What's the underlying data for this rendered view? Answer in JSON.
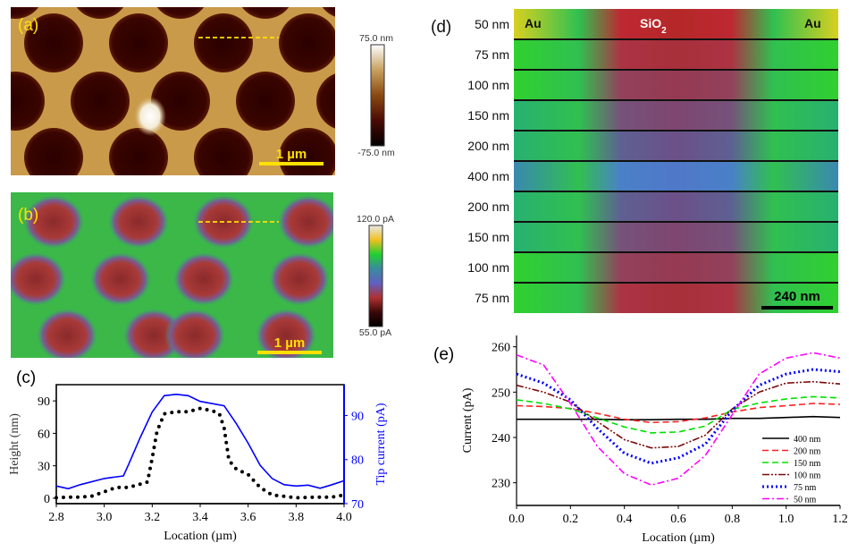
{
  "panels": {
    "a": {
      "label": "(a)",
      "scalebar": "1 µm",
      "colorbar": {
        "max": "75.0 nm",
        "min": "-75.0 nm",
        "colors": [
          "#ffffff",
          "#c8a060",
          "#8a4a12",
          "#4a0a05",
          "#000000"
        ]
      }
    },
    "b": {
      "label": "(b)",
      "scalebar": "1 µm",
      "colorbar": {
        "max": "120.0 pA",
        "min": "55.0 pA",
        "colors": [
          "#e8e8e8",
          "#f0c020",
          "#20d030",
          "#3a8aa0",
          "#6060c0",
          "#b03030",
          "#3a0808",
          "#000000"
        ]
      }
    },
    "d": {
      "label": "(d)",
      "left_label": "Au",
      "center_label": "SiO",
      "center_label_sub": "2",
      "right_label": "Au",
      "scalebar": "240 nm",
      "rows": [
        "50 nm",
        "75 nm",
        "100 nm",
        "150 nm",
        "200 nm",
        "400 nm",
        "200 nm",
        "150 nm",
        "100 nm",
        "75 nm"
      ]
    }
  },
  "chart_data": [
    {
      "id": "c",
      "panel_label": "(c)",
      "type": "line",
      "xlabel": "Location (µm)",
      "ylabel": "Height (nm)",
      "y2label": "Tip current (pA)",
      "xlim": [
        2.8,
        4.0
      ],
      "ylim": [
        -5,
        105
      ],
      "y2lim": [
        70,
        97
      ],
      "xticks": [
        "2.8",
        "3.0",
        "3.2",
        "3.4",
        "3.6",
        "3.8",
        "4.0"
      ],
      "yticks": [
        "0",
        "30",
        "60",
        "90"
      ],
      "y2ticks": [
        "70",
        "80",
        "90"
      ],
      "series": [
        {
          "axis": "left",
          "color": "#000000",
          "style": "dotted",
          "x": [
            2.8,
            2.85,
            2.9,
            2.95,
            3.0,
            3.05,
            3.1,
            3.15,
            3.18,
            3.2,
            3.22,
            3.25,
            3.3,
            3.35,
            3.4,
            3.45,
            3.48,
            3.5,
            3.52,
            3.55,
            3.6,
            3.65,
            3.7,
            3.8,
            3.9,
            3.95,
            4.0
          ],
          "y": [
            0.5,
            1,
            1,
            2,
            6,
            10,
            10,
            13,
            15,
            37,
            62,
            78,
            80,
            80,
            83,
            81,
            78,
            65,
            35,
            27,
            22,
            10,
            3,
            0.5,
            1,
            1,
            3
          ]
        },
        {
          "axis": "right",
          "color": "#0000ff",
          "style": "solid",
          "x": [
            2.8,
            2.85,
            2.9,
            3.0,
            3.08,
            3.1,
            3.15,
            3.2,
            3.25,
            3.3,
            3.35,
            3.4,
            3.5,
            3.55,
            3.6,
            3.65,
            3.7,
            3.75,
            3.8,
            3.85,
            3.9,
            3.95,
            4.0
          ],
          "y": [
            74,
            73.4,
            74.3,
            75.7,
            76.3,
            78.7,
            85,
            90.8,
            94.5,
            94.8,
            94.5,
            93.2,
            92.2,
            88.2,
            83.7,
            78.7,
            75.7,
            74.3,
            74,
            74.2,
            73.5,
            74.3,
            75.2
          ]
        }
      ]
    },
    {
      "id": "e",
      "panel_label": "(e)",
      "type": "line",
      "xlabel": "Location (µm)",
      "ylabel": "Current (pA)",
      "xlim": [
        0,
        1.2
      ],
      "ylim": [
        225,
        262.5
      ],
      "xticks": [
        "0.0",
        "0.2",
        "0.4",
        "0.6",
        "0.8",
        "1.0",
        "1.2"
      ],
      "yticks": [
        "230",
        "240",
        "250",
        "260"
      ],
      "legend": "lower-right",
      "x": [
        0,
        0.1,
        0.2,
        0.3,
        0.4,
        0.5,
        0.6,
        0.7,
        0.8,
        0.9,
        1.0,
        1.1,
        1.2
      ],
      "series": [
        {
          "name": "400 nm",
          "color": "#000000",
          "style": "solid",
          "values": [
            244,
            244,
            244,
            244,
            243.9,
            243.9,
            244,
            244,
            244.2,
            244.2,
            244.4,
            244.6,
            244.4
          ]
        },
        {
          "name": "200 nm",
          "color": "#ff2020",
          "style": "dashed",
          "values": [
            247,
            246.8,
            246.4,
            245.3,
            244,
            243.3,
            243.5,
            244.3,
            245.6,
            246.6,
            247,
            247.5,
            247.3
          ]
        },
        {
          "name": "150 nm",
          "color": "#00e000",
          "style": "dashed",
          "values": [
            248.3,
            247.5,
            246.3,
            244.3,
            242.3,
            241,
            241.2,
            242.5,
            246.2,
            247.6,
            248.5,
            249,
            248.7
          ]
        },
        {
          "name": "100 nm",
          "color": "#7a0a0a",
          "style": "dashdotdot",
          "values": [
            251.5,
            250,
            247.8,
            243.5,
            239.5,
            237.7,
            238,
            240.5,
            246.3,
            250,
            252,
            252.3,
            251.8
          ]
        },
        {
          "name": "75 nm",
          "color": "#0000ff",
          "style": "dotted",
          "values": [
            254,
            252,
            248.3,
            242,
            236.5,
            234.3,
            235.5,
            238.5,
            246,
            251.5,
            254,
            255,
            254.5
          ]
        },
        {
          "name": "50 nm",
          "color": "#ff00ff",
          "style": "dashdot",
          "values": [
            258.2,
            256,
            247.5,
            238,
            232,
            229.5,
            231,
            236,
            245,
            254,
            257.5,
            258.7,
            257.5
          ]
        }
      ]
    }
  ]
}
